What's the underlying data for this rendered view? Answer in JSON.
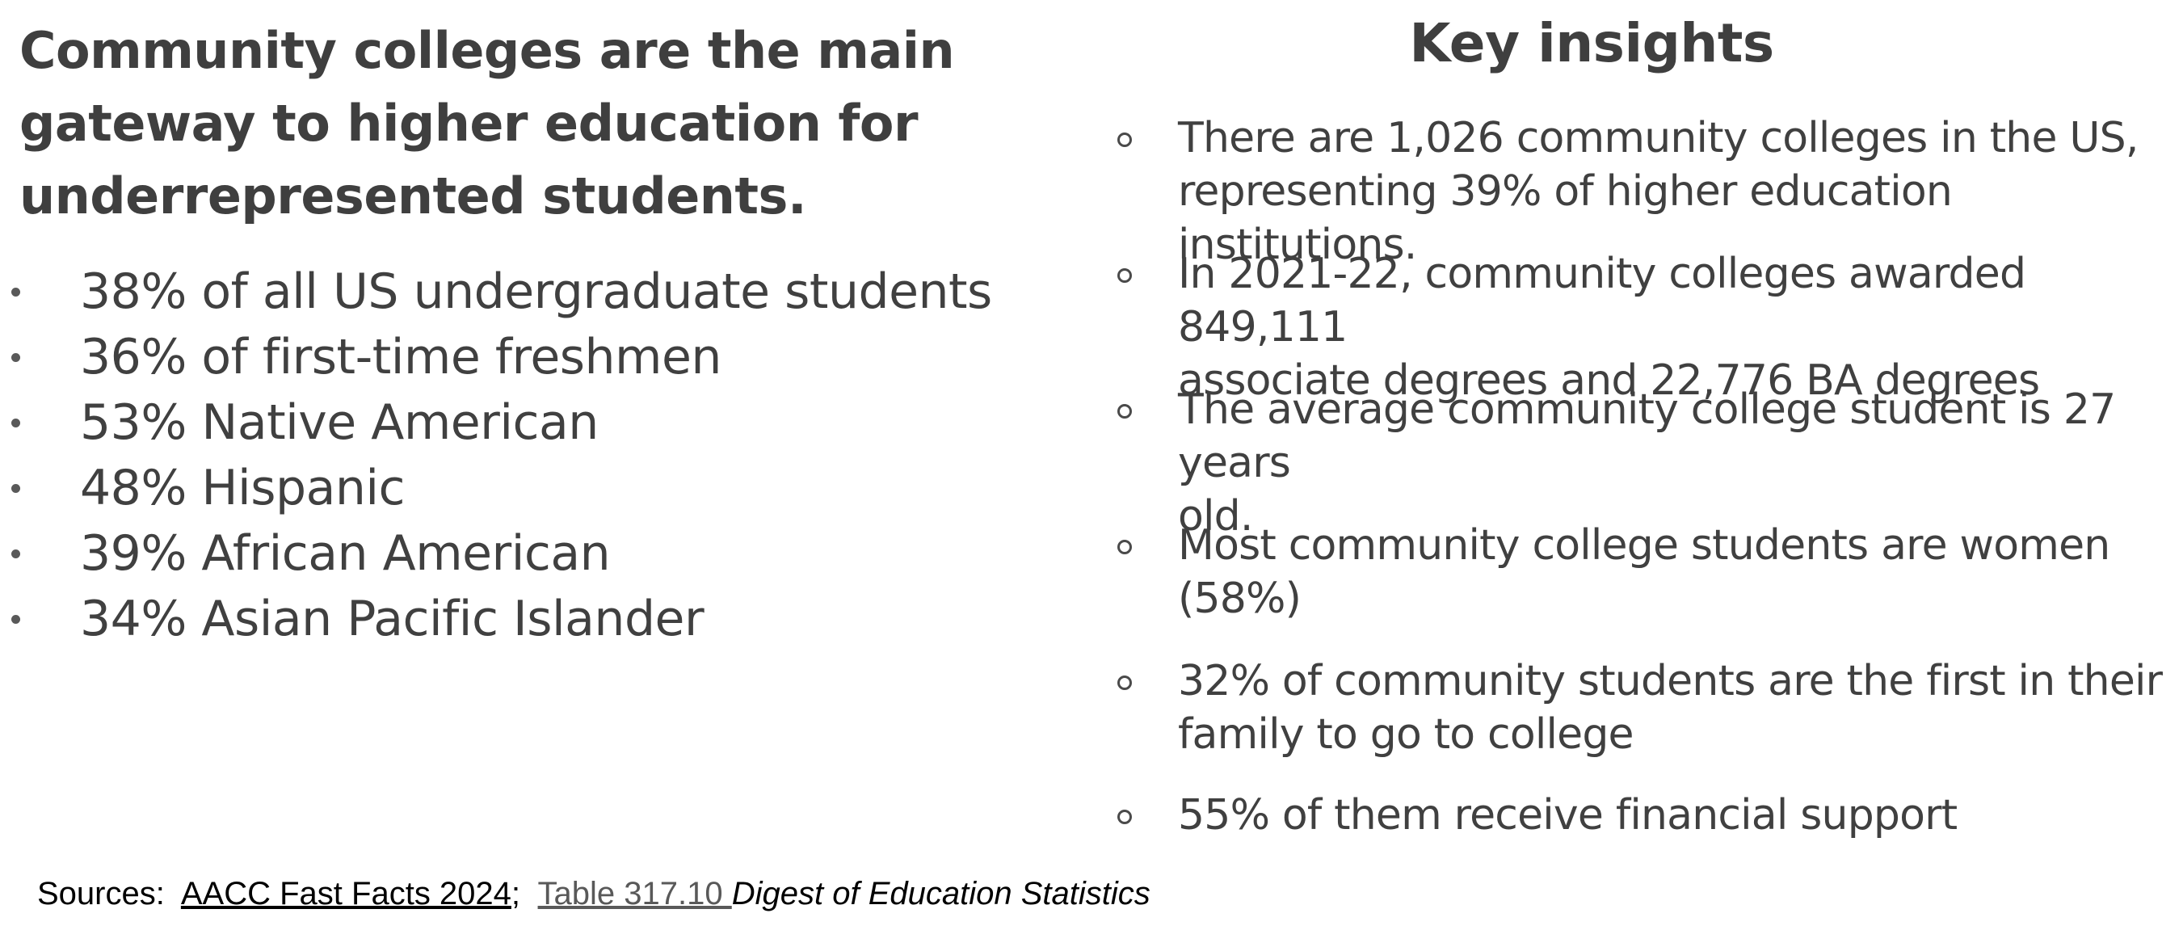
{
  "left": {
    "heading": "Community colleges are the main gateway to higher education for underrepresented students.",
    "stats": [
      "38% of all US undergraduate students",
      "36% of first-time freshmen",
      "53% Native American",
      "48% Hispanic",
      "39% African American",
      "34% Asian Pacific Islander"
    ]
  },
  "right": {
    "heading": "Key insights",
    "insights": [
      "There are 1,026 community colleges in the US,\nrepresenting 39% of higher education institutions.",
      "In 2021-22, community colleges awarded 849,111\nassociate degrees and  22,776 BA degrees",
      "The average community college student is 27 years\nold.",
      "Most community college students are women\n(58%)",
      "32% of  community students are the first in their\nfamily to go to college",
      "55% of them receive financial support"
    ]
  },
  "sources": {
    "label": "Sources:  ",
    "link1": "AACC Fast Facts 2024",
    "separator": ";  ",
    "link2": "Table 317.10 ",
    "italic": "Digest of Education Statistics"
  }
}
